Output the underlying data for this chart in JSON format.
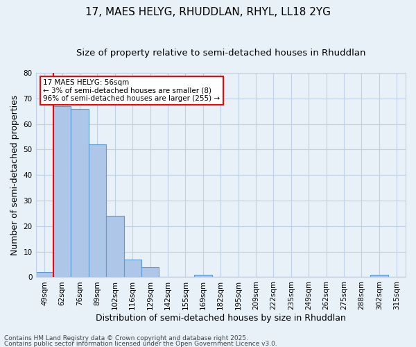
{
  "title1": "17, MAES HELYG, RHUDDLAN, RHYL, LL18 2YG",
  "title2": "Size of property relative to semi-detached houses in Rhuddlan",
  "xlabel": "Distribution of semi-detached houses by size in Rhuddlan",
  "ylabel": "Number of semi-detached properties",
  "categories": [
    "49sqm",
    "62sqm",
    "76sqm",
    "89sqm",
    "102sqm",
    "116sqm",
    "129sqm",
    "142sqm",
    "155sqm",
    "169sqm",
    "182sqm",
    "195sqm",
    "209sqm",
    "222sqm",
    "235sqm",
    "249sqm",
    "262sqm",
    "275sqm",
    "288sqm",
    "302sqm",
    "315sqm"
  ],
  "values": [
    2,
    67,
    66,
    52,
    24,
    7,
    4,
    0,
    0,
    1,
    0,
    0,
    0,
    0,
    0,
    0,
    0,
    0,
    0,
    1,
    0
  ],
  "bar_color": "#aec6e8",
  "bar_edge_color": "#5b9bd5",
  "highlight_bar_index": 1,
  "highlight_color": "#ff0000",
  "annotation_text": "17 MAES HELYG: 56sqm\n← 3% of semi-detached houses are smaller (8)\n96% of semi-detached houses are larger (255) →",
  "annotation_box_color": "#ffffff",
  "annotation_box_edge": "#ff0000",
  "ylim": [
    0,
    80
  ],
  "yticks": [
    0,
    10,
    20,
    30,
    40,
    50,
    60,
    70,
    80
  ],
  "grid_color": "#c0d0e8",
  "background_color": "#e8f0f8",
  "footer1": "Contains HM Land Registry data © Crown copyright and database right 2025.",
  "footer2": "Contains public sector information licensed under the Open Government Licence v3.0.",
  "title1_fontsize": 11,
  "title2_fontsize": 9.5,
  "tick_fontsize": 7.5,
  "label_fontsize": 9,
  "annotation_fontsize": 7.5,
  "footer_fontsize": 6.5
}
